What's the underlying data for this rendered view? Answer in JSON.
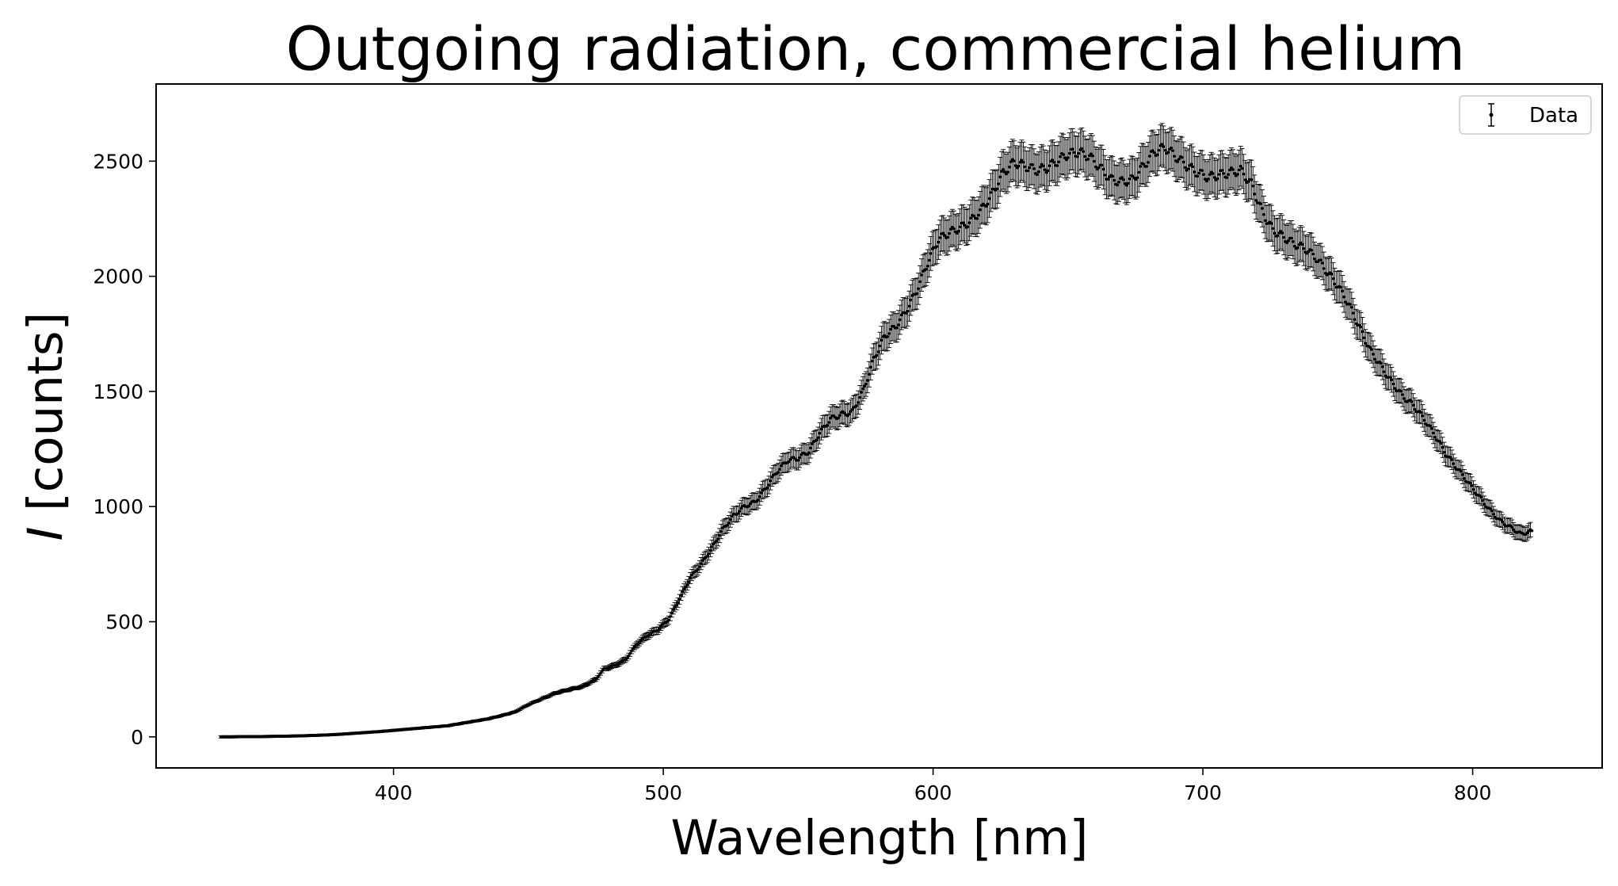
{
  "chart_data": {
    "type": "scatter",
    "title": "Outgoing radiation, commercial helium",
    "xlabel": "Wavelength [nm]",
    "ylabel_var": "I",
    "ylabel_unit": "[counts]",
    "xlim": [
      312,
      848
    ],
    "ylim": [
      -135,
      2835
    ],
    "xticks": [
      400,
      500,
      600,
      700,
      800
    ],
    "yticks": [
      0,
      500,
      1000,
      1500,
      2000,
      2500
    ],
    "grid": false,
    "legend": {
      "position": "top-right",
      "entries": [
        "Data"
      ]
    },
    "marker_color": "#000000",
    "series": [
      {
        "name": "Data",
        "points": [
          [
            336,
            0
          ],
          [
            340,
            0
          ],
          [
            345,
            1
          ],
          [
            350,
            1
          ],
          [
            355,
            2
          ],
          [
            360,
            3
          ],
          [
            365,
            4
          ],
          [
            370,
            6
          ],
          [
            375,
            8
          ],
          [
            380,
            11
          ],
          [
            385,
            15
          ],
          [
            390,
            19
          ],
          [
            395,
            23
          ],
          [
            400,
            28
          ],
          [
            405,
            33
          ],
          [
            410,
            38
          ],
          [
            415,
            43
          ],
          [
            420,
            48
          ],
          [
            425,
            58
          ],
          [
            430,
            68
          ],
          [
            435,
            78
          ],
          [
            440,
            92
          ],
          [
            445,
            108
          ],
          [
            450,
            140
          ],
          [
            455,
            165
          ],
          [
            460,
            190
          ],
          [
            465,
            205
          ],
          [
            470,
            218
          ],
          [
            475,
            250
          ],
          [
            478,
            295
          ],
          [
            482,
            310
          ],
          [
            486,
            335
          ],
          [
            490,
            400
          ],
          [
            494,
            440
          ],
          [
            498,
            465
          ],
          [
            502,
            510
          ],
          [
            506,
            600
          ],
          [
            510,
            690
          ],
          [
            514,
            750
          ],
          [
            518,
            820
          ],
          [
            522,
            900
          ],
          [
            526,
            960
          ],
          [
            530,
            1000
          ],
          [
            534,
            1020
          ],
          [
            538,
            1080
          ],
          [
            542,
            1150
          ],
          [
            546,
            1200
          ],
          [
            550,
            1210
          ],
          [
            554,
            1240
          ],
          [
            558,
            1320
          ],
          [
            562,
            1380
          ],
          [
            566,
            1400
          ],
          [
            570,
            1410
          ],
          [
            574,
            1500
          ],
          [
            578,
            1640
          ],
          [
            582,
            1740
          ],
          [
            586,
            1780
          ],
          [
            590,
            1850
          ],
          [
            594,
            1940
          ],
          [
            598,
            2060
          ],
          [
            602,
            2160
          ],
          [
            606,
            2190
          ],
          [
            610,
            2210
          ],
          [
            614,
            2240
          ],
          [
            618,
            2290
          ],
          [
            622,
            2360
          ],
          [
            626,
            2450
          ],
          [
            630,
            2495
          ],
          [
            634,
            2480
          ],
          [
            638,
            2460
          ],
          [
            642,
            2470
          ],
          [
            646,
            2500
          ],
          [
            650,
            2530
          ],
          [
            654,
            2540
          ],
          [
            658,
            2520
          ],
          [
            662,
            2470
          ],
          [
            666,
            2420
          ],
          [
            670,
            2410
          ],
          [
            674,
            2420
          ],
          [
            678,
            2480
          ],
          [
            682,
            2540
          ],
          [
            686,
            2560
          ],
          [
            690,
            2520
          ],
          [
            694,
            2480
          ],
          [
            698,
            2450
          ],
          [
            702,
            2430
          ],
          [
            706,
            2440
          ],
          [
            710,
            2450
          ],
          [
            714,
            2460
          ],
          [
            718,
            2400
          ],
          [
            722,
            2280
          ],
          [
            726,
            2200
          ],
          [
            730,
            2170
          ],
          [
            734,
            2140
          ],
          [
            738,
            2120
          ],
          [
            742,
            2080
          ],
          [
            746,
            2020
          ],
          [
            750,
            1960
          ],
          [
            754,
            1880
          ],
          [
            758,
            1780
          ],
          [
            762,
            1680
          ],
          [
            766,
            1610
          ],
          [
            770,
            1540
          ],
          [
            774,
            1480
          ],
          [
            778,
            1440
          ],
          [
            782,
            1380
          ],
          [
            786,
            1310
          ],
          [
            790,
            1230
          ],
          [
            794,
            1170
          ],
          [
            798,
            1110
          ],
          [
            802,
            1050
          ],
          [
            806,
            990
          ],
          [
            810,
            940
          ],
          [
            814,
            910
          ],
          [
            818,
            880
          ],
          [
            822,
            895
          ]
        ]
      }
    ],
    "error_bars": {
      "color": "#000000",
      "relative": 0.035,
      "minimum": 5
    }
  }
}
